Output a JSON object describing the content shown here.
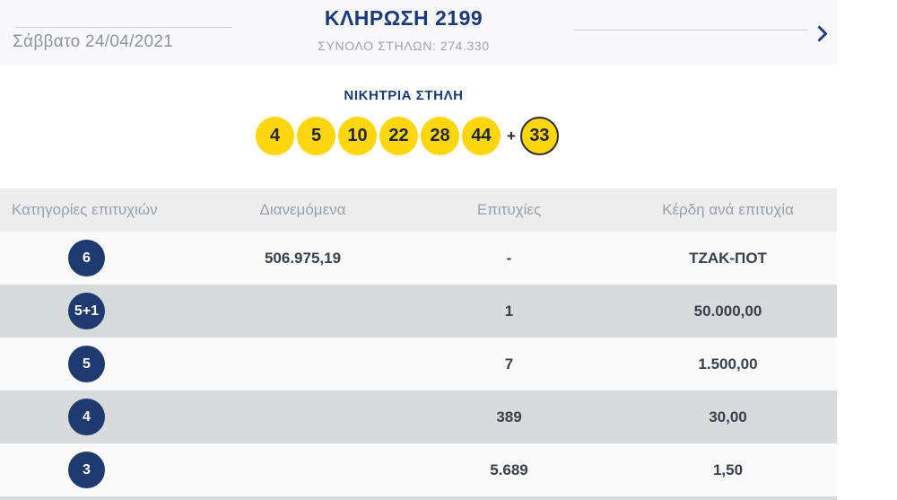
{
  "header": {
    "title": "ΚΛΗΡΩΣΗ 2199",
    "subtitle": "ΣΥΝΟΛΟ ΣΤΗΛΩΝ: 274.330",
    "date": "Σάββατο 24/04/2021",
    "next_icon": "chevron-right"
  },
  "winning": {
    "title": "ΝΙΚΗΤΡΙΑ ΣΤΗΛΗ",
    "numbers": [
      "4",
      "5",
      "10",
      "22",
      "28",
      "44"
    ],
    "plus": "+",
    "bonus": "33",
    "ball_color": "#ffd60f"
  },
  "table": {
    "headers": {
      "category": "Κατηγορίες επιτυχιών",
      "distributed": "Διανεμόμενα",
      "winners": "Επιτυχίες",
      "prize": "Κέρδη ανά επιτυχία"
    },
    "rows": [
      {
        "category": "6",
        "distributed": "506.975,19",
        "winners": "-",
        "prize": "ΤΖΑΚ-ΠΟΤ"
      },
      {
        "category": "5+1",
        "distributed": "",
        "winners": "1",
        "prize": "50.000,00"
      },
      {
        "category": "5",
        "distributed": "",
        "winners": "7",
        "prize": "1.500,00"
      },
      {
        "category": "4",
        "distributed": "",
        "winners": "389",
        "prize": "30,00"
      },
      {
        "category": "3",
        "distributed": "",
        "winners": "5.689",
        "prize": "1,50"
      }
    ]
  },
  "colors": {
    "accent_navy": "#1a3a7c",
    "badge_navy": "#1e3a6e",
    "ball_yellow": "#ffd60f",
    "row_dark": "#d9dadb",
    "row_light": "#fafafb"
  }
}
